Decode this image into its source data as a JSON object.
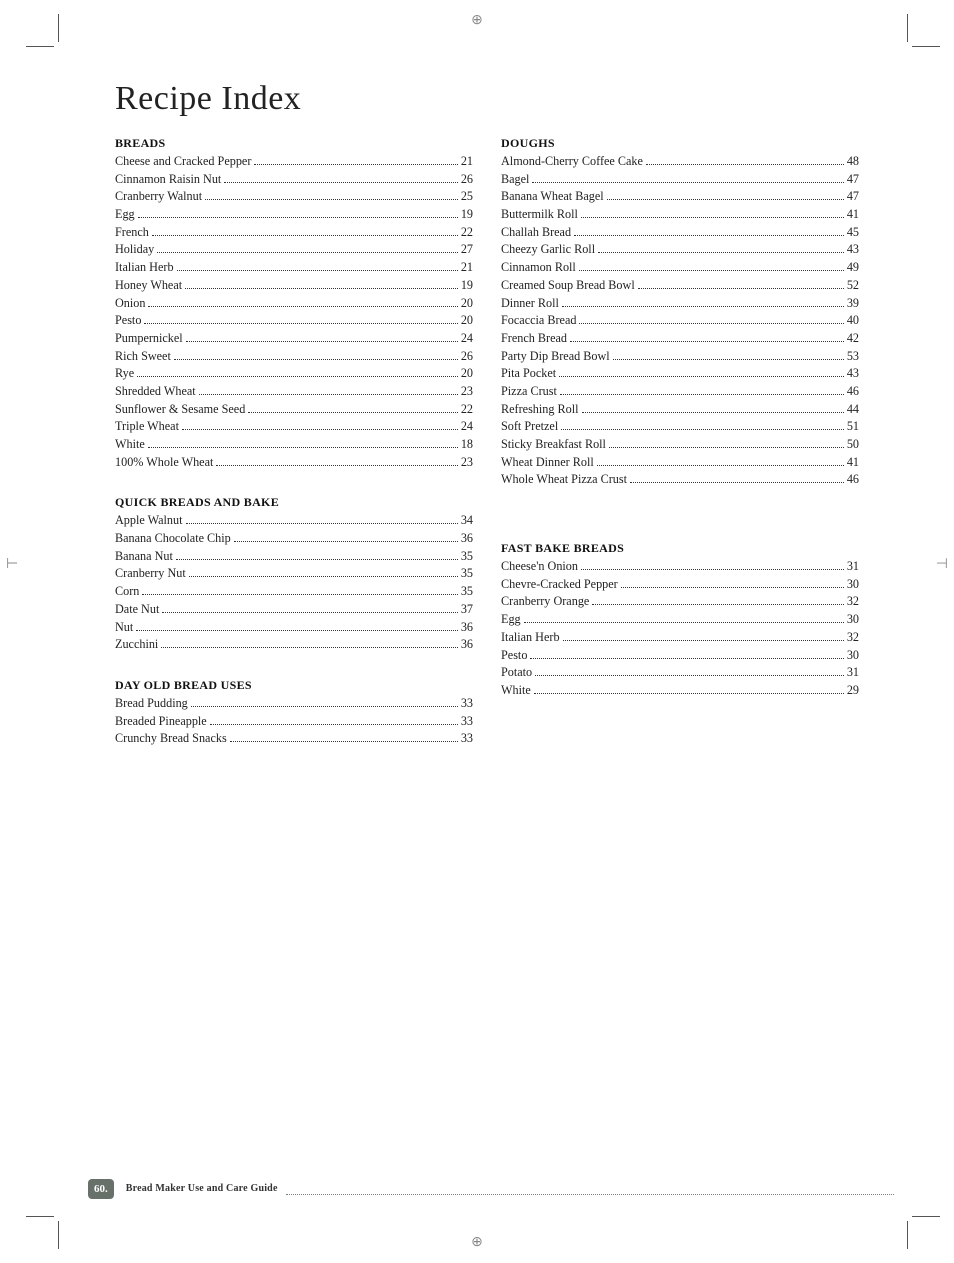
{
  "title": "Recipe Index",
  "footer": {
    "pageNumber": "60.",
    "guideText": "Bread Maker Use and Care Guide"
  },
  "leftColumn": [
    {
      "heading": "BREADS",
      "entries": [
        {
          "label": "Cheese and Cracked Pepper",
          "page": "21"
        },
        {
          "label": "Cinnamon Raisin Nut",
          "page": "26"
        },
        {
          "label": "Cranberry Walnut",
          "page": "25"
        },
        {
          "label": "Egg",
          "page": "19"
        },
        {
          "label": "French",
          "page": "22"
        },
        {
          "label": "Holiday",
          "page": "27"
        },
        {
          "label": "Italian Herb",
          "page": "21"
        },
        {
          "label": "Honey Wheat",
          "page": "19"
        },
        {
          "label": "Onion",
          "page": "20"
        },
        {
          "label": "Pesto",
          "page": "20"
        },
        {
          "label": "Pumpernickel",
          "page": "24"
        },
        {
          "label": "Rich Sweet",
          "page": "26"
        },
        {
          "label": "Rye",
          "page": "20"
        },
        {
          "label": "Shredded Wheat",
          "page": "23"
        },
        {
          "label": "Sunflower & Sesame Seed",
          "page": "22"
        },
        {
          "label": "Triple Wheat",
          "page": "24"
        },
        {
          "label": "White",
          "page": "18"
        },
        {
          "label": "100% Whole Wheat",
          "page": "23"
        }
      ]
    },
    {
      "heading": "QUICK BREADS AND BAKE",
      "entries": [
        {
          "label": "Apple Walnut",
          "page": "34"
        },
        {
          "label": "Banana Chocolate Chip",
          "page": "36"
        },
        {
          "label": "Banana Nut",
          "page": "35"
        },
        {
          "label": "Cranberry Nut",
          "page": "35"
        },
        {
          "label": "Corn",
          "page": "35"
        },
        {
          "label": "Date Nut",
          "page": "37"
        },
        {
          "label": "Nut",
          "page": "36"
        },
        {
          "label": "Zucchini",
          "page": "36"
        }
      ]
    },
    {
      "heading": "DAY OLD BREAD USES",
      "entries": [
        {
          "label": "Bread Pudding",
          "page": "33"
        },
        {
          "label": "Breaded Pineapple",
          "page": "33"
        },
        {
          "label": "Crunchy Bread Snacks",
          "page": "33"
        }
      ]
    }
  ],
  "rightColumn": [
    {
      "heading": "DOUGHS",
      "entries": [
        {
          "label": "Almond-Cherry Coffee Cake",
          "page": "48"
        },
        {
          "label": "Bagel",
          "page": "47"
        },
        {
          "label": "Banana Wheat Bagel",
          "page": "47"
        },
        {
          "label": "Buttermilk Roll",
          "page": "41"
        },
        {
          "label": "Challah Bread",
          "page": "45"
        },
        {
          "label": "Cheezy Garlic Roll",
          "page": "43"
        },
        {
          "label": "Cinnamon Roll",
          "page": "49"
        },
        {
          "label": "Creamed Soup Bread Bowl",
          "page": "52"
        },
        {
          "label": "Dinner Roll",
          "page": "39"
        },
        {
          "label": "Focaccia Bread",
          "page": "40"
        },
        {
          "label": "French Bread",
          "page": "42"
        },
        {
          "label": "Party Dip Bread Bowl",
          "page": "53"
        },
        {
          "label": "Pita Pocket",
          "page": "43"
        },
        {
          "label": "Pizza Crust",
          "page": "46"
        },
        {
          "label": "Refreshing Roll",
          "page": "44"
        },
        {
          "label": "Soft Pretzel",
          "page": "51"
        },
        {
          "label": "Sticky Breakfast Roll",
          "page": "50"
        },
        {
          "label": "Wheat Dinner Roll",
          "page": "41"
        },
        {
          "label": "Whole Wheat Pizza Crust",
          "page": "46"
        }
      ]
    },
    {
      "heading": "FAST BAKE BREADS",
      "topGap": true,
      "entries": [
        {
          "label": "Cheese'n Onion",
          "page": "31"
        },
        {
          "label": "Chevre-Cracked Pepper",
          "page": "30"
        },
        {
          "label": "Cranberry Orange",
          "page": "32"
        },
        {
          "label": "Egg",
          "page": "30"
        },
        {
          "label": "Italian Herb",
          "page": "32"
        },
        {
          "label": "Pesto",
          "page": "30"
        },
        {
          "label": "Potato",
          "page": "31"
        },
        {
          "label": "White",
          "page": "29"
        }
      ]
    }
  ]
}
